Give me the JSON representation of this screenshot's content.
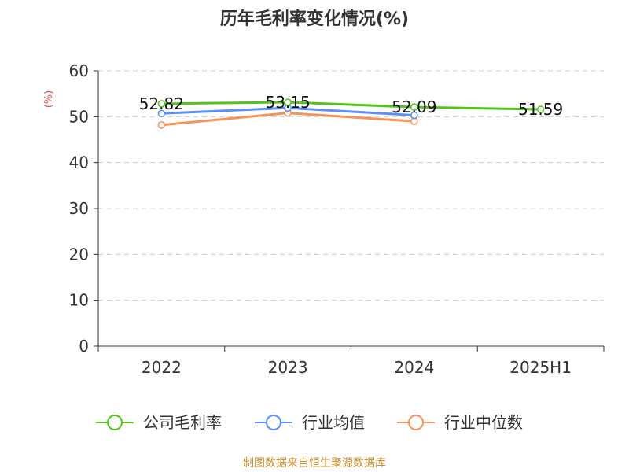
{
  "chart_data": {
    "type": "line",
    "title": "历年毛利率变化情况(%)",
    "ylabel": "(%)",
    "xlabel": "",
    "categories": [
      "2022",
      "2023",
      "2024",
      "2025H1"
    ],
    "ylim": [
      0,
      60
    ],
    "yticks": [
      0,
      10,
      20,
      30,
      40,
      50,
      60
    ],
    "grid": true,
    "legend_position": "bottom",
    "series": [
      {
        "name": "公司毛利率",
        "color": "#52c41a",
        "values": [
          52.82,
          53.15,
          52.09,
          51.59
        ],
        "labels": [
          "52.82",
          "53.15",
          "52.09",
          "51.59"
        ]
      },
      {
        "name": "行业均值",
        "color": "#5b8ff9",
        "values": [
          50.7,
          51.9,
          50.3,
          null
        ],
        "labels": []
      },
      {
        "name": "行业中位数",
        "color": "#f6925a",
        "values": [
          48.2,
          50.8,
          49.0,
          null
        ],
        "labels": []
      }
    ]
  },
  "source": "制图数据来自恒生聚源数据库"
}
